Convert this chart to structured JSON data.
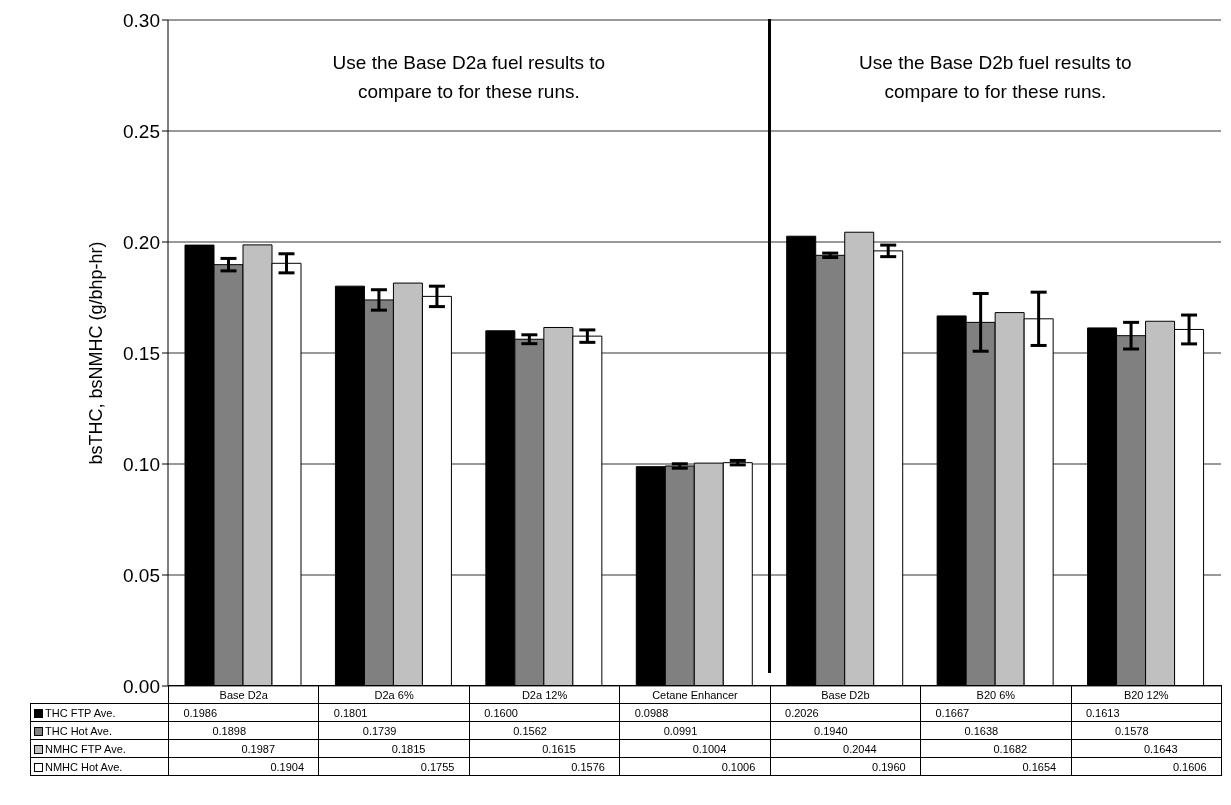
{
  "chart_data": {
    "type": "bar",
    "ylabel": "bsTHC, bsNMHC (g/bhp-hr)",
    "categories": [
      "Base D2a",
      "D2a 6%",
      "D2a 12%",
      "Cetane Enhancer",
      "Base D2b",
      "B20 6%",
      "B20 12%"
    ],
    "series": [
      {
        "name": "THC FTP Ave.",
        "color": "#000000",
        "values": [
          0.1986,
          0.1801,
          0.16,
          0.0988,
          0.2026,
          0.1667,
          0.1613
        ],
        "value_labels": [
          "0.1986",
          "0.1801",
          "0.1600",
          "0.0988",
          "0.2026",
          "0.1667",
          "0.1613"
        ]
      },
      {
        "name": "THC Hot Ave.",
        "color": "#808080",
        "values": [
          0.1898,
          0.1739,
          0.1562,
          0.0991,
          0.194,
          0.1638,
          0.1578
        ],
        "value_labels": [
          "0.1898",
          "0.1739",
          "0.1562",
          "0.0991",
          "0.1940",
          "0.1638",
          "0.1578"
        ],
        "errors": [
          0.0028,
          0.0046,
          0.002,
          0.001,
          0.001,
          0.013,
          0.006
        ]
      },
      {
        "name": "NMHC FTP Ave.",
        "color": "#c0c0c0",
        "values": [
          0.1987,
          0.1815,
          0.1615,
          0.1004,
          0.2044,
          0.1682,
          0.1643
        ],
        "value_labels": [
          "0.1987",
          "0.1815",
          "0.1615",
          "0.1004",
          "0.2044",
          "0.1682",
          "0.1643"
        ]
      },
      {
        "name": "NMHC Hot Ave.",
        "color": "#ffffff",
        "values": [
          0.1904,
          0.1755,
          0.1576,
          0.1006,
          0.196,
          0.1654,
          0.1606
        ],
        "value_labels": [
          "0.1904",
          "0.1755",
          "0.1576",
          "0.1006",
          "0.1960",
          "0.1654",
          "0.1606"
        ],
        "errors": [
          0.0043,
          0.0046,
          0.0028,
          0.001,
          0.0026,
          0.012,
          0.0065
        ]
      }
    ],
    "ylim": [
      0,
      0.3
    ],
    "yticks": [
      {
        "value": 0,
        "label": "0.00"
      },
      {
        "value": 0.05,
        "label": "0.05"
      },
      {
        "value": 0.1,
        "label": "0.10"
      },
      {
        "value": 0.15,
        "label": "0.15"
      },
      {
        "value": 0.2,
        "label": "0.20"
      },
      {
        "value": 0.25,
        "label": "0.25"
      },
      {
        "value": 0.3,
        "label": "0.30"
      }
    ],
    "grid": "y",
    "legend": "bottom",
    "annotations": [
      "Use the Base D2a fuel results to compare to for these runs.",
      "Use the Base D2b fuel results to compare to for these runs."
    ]
  }
}
